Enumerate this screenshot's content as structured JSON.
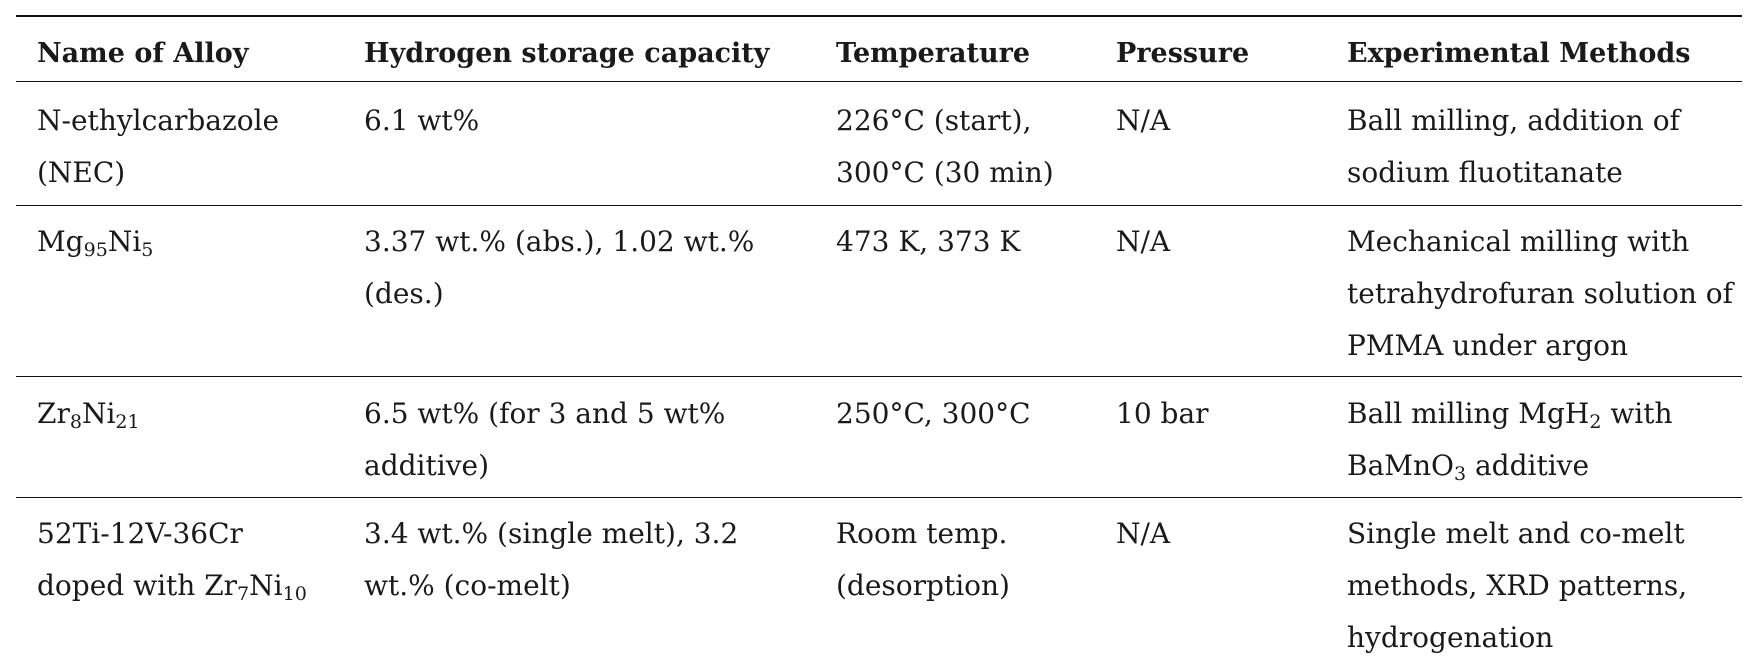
{
  "table": {
    "headers": [
      "Name of Alloy",
      "Hydrogen storage capacity",
      "Temperature",
      "Pressure",
      "Experimental Methods"
    ],
    "rows": [
      {
        "alloy": [
          "N-ethylcarbazole",
          "(NEC)"
        ],
        "capacity": [
          "6.1 wt%"
        ],
        "temperature": [
          "226°C (start),",
          "300°C (30 min)"
        ],
        "pressure": [
          "N/A"
        ],
        "methods": [
          "Ball milling, addition of",
          "sodium fluotitanate"
        ]
      },
      {
        "alloy_parts": {
          "a": "Mg",
          "a_sub": "95",
          "b": "Ni",
          "b_sub": "5"
        },
        "capacity": [
          "3.37 wt.% (abs.), 1.02 wt.%",
          "(des.)"
        ],
        "temperature": [
          "473 K, 373 K"
        ],
        "pressure": [
          "N/A"
        ],
        "methods": [
          "Mechanical milling with",
          "tetrahydrofuran solution of",
          "PMMA under argon"
        ]
      },
      {
        "alloy_parts": {
          "a": "Zr",
          "a_sub": "8",
          "b": "Ni",
          "b_sub": "21"
        },
        "capacity": [
          "6.5 wt% (for 3 and 5 wt%",
          "additive)"
        ],
        "temperature": [
          "250°C, 300°C"
        ],
        "pressure": [
          "10 bar"
        ],
        "methods_line1": {
          "pre": "Ball milling MgH",
          "sub": "2",
          "post": " with"
        },
        "methods_line2": {
          "pre": "BaMnO",
          "sub": "3",
          "post": " additive"
        }
      },
      {
        "alloy_line1": "52Ti-12V-36Cr",
        "alloy_line2": {
          "pre": "doped with Zr",
          "sub1": "7",
          "mid": "Ni",
          "sub2": "10"
        },
        "capacity": [
          "3.4 wt.% (single melt), 3.2",
          "wt.% (co-melt)"
        ],
        "temperature": [
          "Room temp.",
          "(desorption)"
        ],
        "pressure": [
          "N/A"
        ],
        "methods": [
          "Single melt and co-melt",
          "methods, XRD patterns,",
          "hydrogenation"
        ]
      }
    ]
  }
}
